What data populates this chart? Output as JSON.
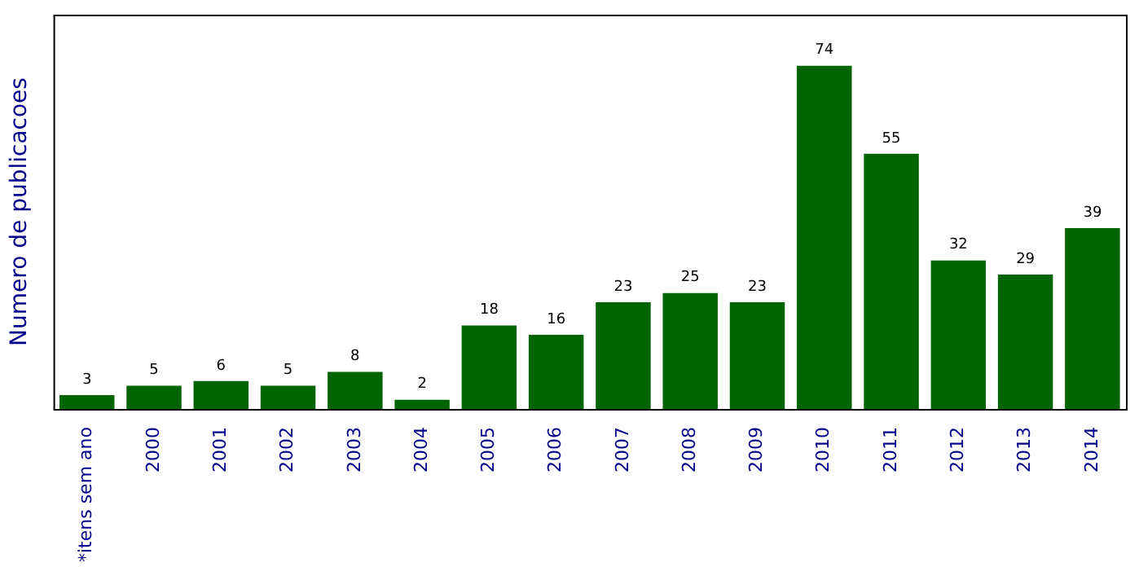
{
  "chart_data": {
    "type": "bar",
    "ylabel": "Numero de publicacoes",
    "categories": [
      "*itens sem ano",
      "2000",
      "2001",
      "2002",
      "2003",
      "2004",
      "2005",
      "2006",
      "2007",
      "2008",
      "2009",
      "2010",
      "2011",
      "2012",
      "2013",
      "2014"
    ],
    "values": [
      3,
      5,
      6,
      5,
      8,
      2,
      18,
      16,
      23,
      25,
      23,
      74,
      55,
      32,
      29,
      39
    ],
    "color": "#006400",
    "ylim": [
      0,
      85
    ],
    "data_labels": true,
    "tick_labels": "x"
  }
}
